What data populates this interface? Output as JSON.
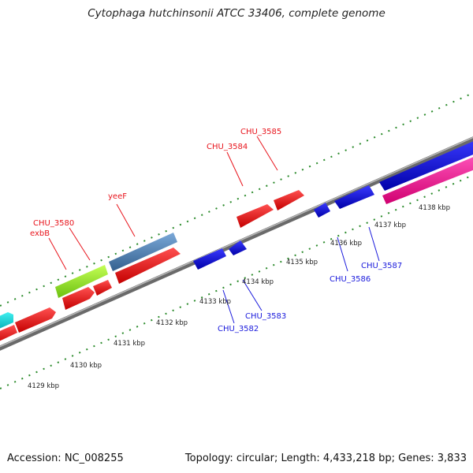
{
  "title": "Cytophaga hutchinsonii ATCC 33406, complete genome",
  "footer": {
    "accession": "Accession: NC_008255",
    "summary": "Topology: circular; Length: 4,433,218 bp; Genes: 3,833"
  },
  "colors": {
    "forward_gene": "#ff1a1a",
    "reverse_gene": "#1414e6",
    "cyan_gene": "#00d0d8",
    "green_gene": "#99ee22",
    "steel_gene": "#4f86b8",
    "pink_gene": "#ff2299",
    "backbone": "#8a8a8a",
    "tick": "#2a8a2a"
  },
  "scale_labels": [
    "4129 kbp",
    "4130 kbp",
    "4131 kbp",
    "4132 kbp",
    "4133 kbp",
    "4134 kbp",
    "4135 kbp",
    "4136 kbp",
    "4137 kbp",
    "4138 kbp"
  ],
  "gene_labels": [
    {
      "text": "CHU_3585",
      "strand": "forward"
    },
    {
      "text": "CHU_3584",
      "strand": "forward"
    },
    {
      "text": "yeeF",
      "strand": "forward"
    },
    {
      "text": "CHU_3580",
      "strand": "forward"
    },
    {
      "text": "exbB",
      "strand": "forward"
    },
    {
      "text": "CHU_3587",
      "strand": "reverse"
    },
    {
      "text": "CHU_3586",
      "strand": "reverse"
    },
    {
      "text": "CHU_3583",
      "strand": "reverse"
    },
    {
      "text": "CHU_3582",
      "strand": "reverse"
    }
  ]
}
